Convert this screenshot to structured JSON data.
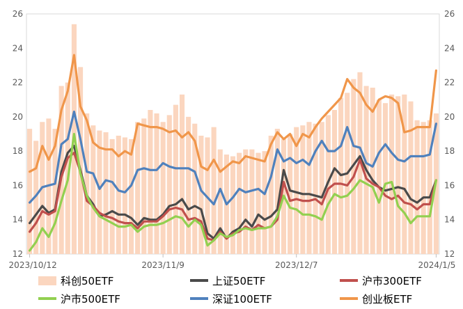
{
  "chart_data": {
    "type": "line",
    "x_tick_labels": [
      "2023/10/12",
      "2023/11/9",
      "2023/12/7",
      "2024/1/5"
    ],
    "left_axis": {
      "ticks": [
        "12",
        "14",
        "16",
        "18",
        "20",
        "22",
        "24",
        "26"
      ],
      "ylim": [
        12,
        26
      ]
    },
    "right_axis": {
      "ticks": [
        "12",
        "14",
        "16",
        "18",
        "20",
        "22",
        "24",
        "26"
      ],
      "ylim": [
        12,
        26
      ]
    },
    "grid": false,
    "legend_placement": "bottom",
    "series": [
      {
        "name": "科创50ETF",
        "kind": "bar",
        "color": "#fbd6bf",
        "axis": "left",
        "values": [
          19.3,
          18.6,
          19.7,
          19.9,
          19.3,
          21.8,
          22.0,
          25.4,
          22.9,
          20.2,
          19.5,
          19.2,
          19.1,
          18.7,
          18.9,
          18.8,
          18.7,
          19.7,
          19.9,
          20.4,
          20.2,
          19.7,
          20.1,
          20.7,
          21.3,
          20.0,
          19.6,
          18.9,
          18.8,
          19.4,
          18.1,
          17.8,
          17.7,
          17.9,
          18.1,
          18.1,
          17.9,
          18.0,
          18.9,
          19.3,
          18.7,
          19.0,
          19.4,
          19.5,
          19.7,
          19.6,
          19.7,
          20.1,
          20.4,
          21.1,
          21.4,
          22.2,
          22.6,
          21.8,
          21.7,
          21.0,
          20.8,
          21.3,
          21.2,
          21.3,
          20.9,
          19.8,
          19.7,
          19.8,
          20.2
        ]
      },
      {
        "name": "上证50ETF",
        "kind": "line",
        "color": "#4a4a4a",
        "axis": "right",
        "values": [
          13.8,
          14.3,
          14.8,
          14.4,
          14.6,
          16.8,
          17.9,
          18.3,
          16.9,
          15.4,
          14.9,
          14.2,
          14.3,
          14.5,
          14.3,
          14.3,
          14.1,
          13.7,
          14.1,
          14.0,
          14.0,
          14.3,
          14.8,
          14.9,
          15.2,
          14.6,
          14.8,
          14.6,
          13.2,
          12.9,
          13.5,
          12.9,
          13.3,
          13.5,
          14.0,
          13.6,
          14.3,
          14.0,
          14.2,
          14.6,
          16.9,
          15.7,
          15.6,
          15.5,
          15.5,
          15.4,
          15.3,
          16.2,
          17.0,
          16.6,
          16.7,
          17.2,
          17.7,
          16.9,
          16.3,
          15.9,
          15.7,
          15.8,
          15.9,
          15.8,
          15.2,
          15.0,
          15.3,
          15.3,
          16.3
        ]
      },
      {
        "name": "沪市300ETF",
        "kind": "line",
        "color": "#c0504d",
        "axis": "right",
        "values": [
          13.3,
          13.8,
          14.5,
          14.3,
          14.5,
          16.5,
          17.6,
          17.9,
          16.8,
          15.1,
          14.8,
          14.4,
          14.2,
          14.1,
          13.9,
          13.8,
          13.8,
          13.5,
          13.9,
          13.9,
          13.9,
          14.2,
          14.6,
          14.7,
          14.6,
          14.0,
          14.1,
          13.9,
          12.9,
          12.8,
          13.3,
          12.9,
          13.2,
          13.3,
          13.6,
          13.4,
          13.7,
          13.5,
          13.6,
          14.0,
          16.2,
          15.1,
          15.2,
          15.1,
          15.1,
          15.2,
          14.9,
          15.8,
          16.1,
          16.1,
          16.0,
          16.5,
          17.5,
          16.4,
          16.1,
          15.9,
          15.4,
          15.2,
          15.4,
          15.0,
          14.9,
          14.6,
          14.9,
          14.9,
          16.3
        ]
      },
      {
        "name": "沪市500ETF",
        "kind": "line",
        "color": "#92d050",
        "axis": "right",
        "values": [
          12.2,
          12.7,
          13.5,
          13.0,
          13.8,
          15.1,
          16.3,
          19.0,
          16.7,
          15.4,
          14.7,
          14.2,
          14.0,
          13.8,
          13.6,
          13.6,
          13.7,
          13.3,
          13.6,
          13.7,
          13.7,
          13.8,
          14.0,
          14.2,
          14.1,
          13.6,
          14.0,
          13.7,
          12.5,
          12.8,
          13.2,
          13.0,
          13.1,
          13.4,
          13.5,
          13.4,
          13.5,
          13.5,
          13.6,
          14.2,
          15.4,
          14.7,
          14.6,
          14.3,
          14.3,
          14.2,
          14.0,
          14.9,
          15.5,
          15.3,
          15.4,
          15.8,
          16.3,
          16.1,
          15.9,
          15.0,
          16.1,
          16.2,
          14.8,
          14.4,
          13.8,
          14.2,
          14.2,
          14.2,
          16.3
        ]
      },
      {
        "name": "深证100ETF",
        "kind": "line",
        "color": "#4f81bd",
        "axis": "right",
        "values": [
          15.0,
          15.4,
          15.9,
          16.0,
          16.1,
          18.4,
          18.7,
          20.3,
          18.7,
          16.8,
          16.7,
          15.8,
          16.3,
          16.2,
          15.7,
          15.6,
          16.0,
          16.9,
          17.0,
          16.9,
          16.9,
          17.3,
          17.1,
          17.0,
          17.0,
          17.0,
          16.8,
          15.7,
          15.3,
          14.9,
          15.8,
          14.9,
          15.3,
          15.8,
          15.6,
          15.7,
          15.8,
          15.5,
          16.5,
          18.1,
          17.4,
          17.6,
          17.3,
          17.5,
          17.2,
          18.0,
          18.6,
          18.0,
          18.0,
          18.3,
          19.4,
          18.3,
          18.2,
          17.3,
          17.1,
          17.9,
          18.4,
          17.9,
          17.5,
          17.4,
          17.7,
          17.7,
          17.7,
          17.8,
          19.6
        ]
      },
      {
        "name": "创业板ETF",
        "kind": "line",
        "color": "#f0964a",
        "axis": "right",
        "values": [
          16.8,
          17.0,
          18.3,
          17.5,
          18.3,
          20.4,
          21.5,
          23.6,
          20.6,
          19.8,
          18.5,
          18.2,
          18.1,
          18.1,
          17.7,
          18.0,
          17.8,
          19.6,
          19.5,
          19.4,
          19.4,
          19.3,
          19.1,
          19.2,
          18.8,
          19.1,
          18.6,
          17.1,
          16.9,
          17.5,
          16.8,
          17.1,
          17.4,
          17.3,
          17.7,
          17.6,
          17.5,
          17.4,
          18.4,
          19.1,
          18.7,
          19.0,
          18.3,
          19.0,
          18.8,
          19.4,
          19.9,
          20.3,
          20.7,
          21.1,
          22.2,
          21.7,
          21.4,
          20.7,
          20.3,
          21.0,
          21.2,
          21.1,
          20.8,
          19.1,
          19.2,
          19.4,
          19.4,
          19.4,
          22.7
        ]
      }
    ]
  }
}
